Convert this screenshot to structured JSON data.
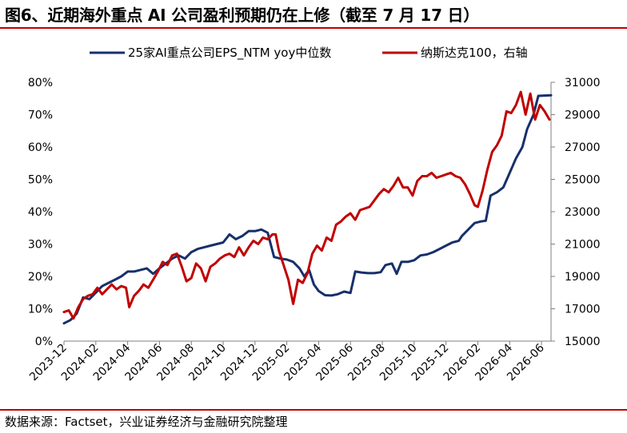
{
  "figure": {
    "title": "图6、近期海外重点 AI 公司盈利预期仍在上修（截至 7 月 17 日）",
    "source": "数据来源：Factset，兴业证券经济与金融研究院整理"
  },
  "colors": {
    "navy": "#17306b",
    "red": "#c00000",
    "rule": "#c00000"
  },
  "chart_data": {
    "type": "line",
    "x_tick_labels": [
      "2023-12",
      "2024-02",
      "2024-04",
      "2024-06",
      "2024-08",
      "2024-10",
      "2024-12",
      "2025-02",
      "2025-04",
      "2025-06",
      "2025-08",
      "2025-10",
      "2025-12",
      "2026-02",
      "2026-04",
      "2026-06"
    ],
    "y_left": {
      "ticks": [
        "0%",
        "10%",
        "20%",
        "30%",
        "40%",
        "50%",
        "60%",
        "70%",
        "80%"
      ],
      "range": [
        0,
        80
      ]
    },
    "y_right": {
      "ticks": [
        "15000",
        "17000",
        "19000",
        "21000",
        "23000",
        "25000",
        "27000",
        "29000",
        "31000"
      ],
      "range": [
        15000,
        31000
      ]
    },
    "x_range_months": [
      0,
      30.6
    ],
    "legend_position": "top",
    "grid": false,
    "series": [
      {
        "name": "25家AI重点公司EPS_NTM yoy中位数",
        "axis": "left",
        "color": "#17306b",
        "points": [
          [
            0.0,
            5.5
          ],
          [
            0.4,
            6.5
          ],
          [
            0.8,
            8.5
          ],
          [
            1.2,
            13.5
          ],
          [
            1.6,
            13.0
          ],
          [
            2.0,
            15.0
          ],
          [
            2.4,
            17.0
          ],
          [
            2.8,
            18.0
          ],
          [
            3.2,
            19.0
          ],
          [
            3.6,
            20.0
          ],
          [
            4.0,
            21.5
          ],
          [
            4.4,
            21.5
          ],
          [
            4.8,
            22.0
          ],
          [
            5.2,
            22.5
          ],
          [
            5.6,
            20.8
          ],
          [
            6.0,
            22.5
          ],
          [
            6.4,
            24.0
          ],
          [
            6.8,
            25.5
          ],
          [
            7.2,
            26.5
          ],
          [
            7.6,
            25.5
          ],
          [
            8.0,
            27.5
          ],
          [
            8.4,
            28.5
          ],
          [
            8.8,
            29.0
          ],
          [
            9.2,
            29.5
          ],
          [
            9.6,
            30.0
          ],
          [
            10.0,
            30.5
          ],
          [
            10.4,
            33.0
          ],
          [
            10.8,
            31.5
          ],
          [
            11.2,
            32.5
          ],
          [
            11.6,
            34.0
          ],
          [
            12.0,
            34.0
          ],
          [
            12.4,
            34.5
          ],
          [
            12.8,
            33.5
          ],
          [
            13.2,
            26.0
          ],
          [
            13.6,
            25.5
          ],
          [
            14.0,
            25.2
          ],
          [
            14.4,
            24.5
          ],
          [
            14.8,
            22.5
          ],
          [
            15.1,
            20.0
          ],
          [
            15.4,
            22.0
          ],
          [
            15.7,
            17.5
          ],
          [
            16.0,
            15.5
          ],
          [
            16.4,
            14.2
          ],
          [
            16.8,
            14.1
          ],
          [
            17.2,
            14.5
          ],
          [
            17.6,
            15.3
          ],
          [
            18.0,
            14.9
          ],
          [
            18.3,
            21.5
          ],
          [
            18.7,
            21.2
          ],
          [
            19.1,
            21.0
          ],
          [
            19.5,
            21.0
          ],
          [
            19.9,
            21.3
          ],
          [
            20.2,
            23.5
          ],
          [
            20.6,
            24.0
          ],
          [
            20.9,
            20.8
          ],
          [
            21.2,
            24.5
          ],
          [
            21.6,
            24.5
          ],
          [
            22.0,
            25.0
          ],
          [
            22.4,
            26.5
          ],
          [
            22.8,
            26.8
          ],
          [
            23.2,
            27.5
          ],
          [
            23.6,
            28.5
          ],
          [
            24.0,
            29.5
          ],
          [
            24.4,
            30.5
          ],
          [
            24.8,
            31.0
          ],
          [
            25.0,
            32.5
          ],
          [
            25.4,
            34.5
          ],
          [
            25.8,
            36.5
          ],
          [
            26.2,
            37.0
          ],
          [
            26.5,
            37.2
          ],
          [
            26.8,
            45.0
          ],
          [
            27.2,
            46.0
          ],
          [
            27.6,
            47.5
          ],
          [
            28.0,
            52.0
          ],
          [
            28.4,
            56.5
          ],
          [
            28.8,
            60.0
          ],
          [
            29.1,
            65.5
          ],
          [
            29.5,
            70.0
          ],
          [
            29.8,
            75.8
          ],
          [
            30.6,
            76.0
          ]
        ]
      },
      {
        "name": "纳斯达克100，右轴",
        "axis": "right",
        "color": "#c00000",
        "points": [
          [
            0.0,
            16800
          ],
          [
            0.3,
            16900
          ],
          [
            0.6,
            16400
          ],
          [
            0.9,
            17100
          ],
          [
            1.2,
            17600
          ],
          [
            1.5,
            17800
          ],
          [
            1.8,
            17900
          ],
          [
            2.1,
            18300
          ],
          [
            2.4,
            17900
          ],
          [
            2.7,
            18200
          ],
          [
            3.0,
            18500
          ],
          [
            3.3,
            18200
          ],
          [
            3.6,
            18400
          ],
          [
            3.9,
            18300
          ],
          [
            4.1,
            17100
          ],
          [
            4.4,
            17800
          ],
          [
            4.7,
            18100
          ],
          [
            5.0,
            18500
          ],
          [
            5.3,
            18300
          ],
          [
            5.6,
            18800
          ],
          [
            5.9,
            19300
          ],
          [
            6.2,
            19900
          ],
          [
            6.5,
            19700
          ],
          [
            6.8,
            20300
          ],
          [
            7.1,
            20400
          ],
          [
            7.4,
            19600
          ],
          [
            7.7,
            18700
          ],
          [
            8.0,
            18900
          ],
          [
            8.3,
            19800
          ],
          [
            8.6,
            19500
          ],
          [
            8.9,
            18700
          ],
          [
            9.2,
            19600
          ],
          [
            9.5,
            19800
          ],
          [
            9.8,
            20100
          ],
          [
            10.1,
            20300
          ],
          [
            10.4,
            20400
          ],
          [
            10.7,
            20200
          ],
          [
            11.0,
            20800
          ],
          [
            11.3,
            20300
          ],
          [
            11.6,
            20800
          ],
          [
            11.9,
            21200
          ],
          [
            12.2,
            21000
          ],
          [
            12.5,
            21400
          ],
          [
            12.8,
            21300
          ],
          [
            13.1,
            21600
          ],
          [
            13.3,
            21600
          ],
          [
            13.5,
            20600
          ],
          [
            13.8,
            19700
          ],
          [
            14.1,
            18800
          ],
          [
            14.4,
            17300
          ],
          [
            14.7,
            18800
          ],
          [
            15.0,
            18600
          ],
          [
            15.3,
            19200
          ],
          [
            15.6,
            20400
          ],
          [
            15.9,
            20900
          ],
          [
            16.2,
            20600
          ],
          [
            16.5,
            21400
          ],
          [
            16.8,
            21200
          ],
          [
            17.1,
            22200
          ],
          [
            17.4,
            22400
          ],
          [
            17.7,
            22700
          ],
          [
            18.0,
            22900
          ],
          [
            18.3,
            22500
          ],
          [
            18.6,
            23100
          ],
          [
            18.9,
            23200
          ],
          [
            19.2,
            23300
          ],
          [
            19.5,
            23700
          ],
          [
            19.8,
            24100
          ],
          [
            20.1,
            24400
          ],
          [
            20.4,
            24200
          ],
          [
            20.7,
            24600
          ],
          [
            21.0,
            25100
          ],
          [
            21.3,
            24500
          ],
          [
            21.6,
            24500
          ],
          [
            21.9,
            24000
          ],
          [
            22.2,
            24900
          ],
          [
            22.5,
            25200
          ],
          [
            22.8,
            25200
          ],
          [
            23.1,
            25400
          ],
          [
            23.4,
            25100
          ],
          [
            23.7,
            25200
          ],
          [
            24.0,
            25300
          ],
          [
            24.3,
            25400
          ],
          [
            24.6,
            25200
          ],
          [
            24.9,
            25100
          ],
          [
            25.2,
            24700
          ],
          [
            25.5,
            24100
          ],
          [
            25.8,
            23400
          ],
          [
            26.0,
            23300
          ],
          [
            26.3,
            24300
          ],
          [
            26.6,
            25600
          ],
          [
            26.9,
            26700
          ],
          [
            27.2,
            27100
          ],
          [
            27.5,
            27700
          ],
          [
            27.8,
            29200
          ],
          [
            28.1,
            29100
          ],
          [
            28.4,
            29600
          ],
          [
            28.7,
            30400
          ],
          [
            29.0,
            29000
          ],
          [
            29.3,
            30300
          ],
          [
            29.6,
            28700
          ],
          [
            29.9,
            29600
          ],
          [
            30.2,
            29200
          ],
          [
            30.5,
            28700
          ]
        ]
      }
    ]
  }
}
